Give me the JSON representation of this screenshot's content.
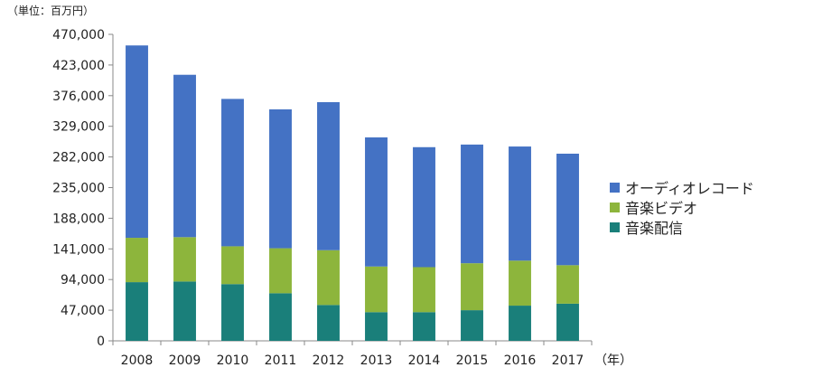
{
  "chart_data": {
    "type": "bar",
    "stacked": true,
    "unit_label": "（単位：百万円）",
    "x_unit_label": "（年）",
    "categories": [
      "2008",
      "2009",
      "2010",
      "2011",
      "2012",
      "2013",
      "2014",
      "2015",
      "2016",
      "2017"
    ],
    "ylim": [
      0,
      470000
    ],
    "yticks": [
      "0",
      "47,000",
      "94,000",
      "141,000",
      "188,000",
      "235,000",
      "282,000",
      "329,000",
      "376,000",
      "423,000",
      "470,000"
    ],
    "ytick_values": [
      0,
      47000,
      94000,
      141000,
      188000,
      235000,
      282000,
      329000,
      376000,
      423000,
      470000
    ],
    "grid": false,
    "legend_position": "right",
    "series": [
      {
        "name": "音楽配信",
        "color": "#1a7f7a",
        "values": [
          90000,
          91000,
          87000,
          73000,
          55000,
          44000,
          44000,
          47000,
          54000,
          57000
        ]
      },
      {
        "name": "音楽ビデオ",
        "color": "#8db53c",
        "values": [
          68000,
          68000,
          58000,
          69000,
          84000,
          70000,
          69000,
          72000,
          69000,
          59000
        ]
      },
      {
        "name": "オーディオレコード",
        "color": "#4472c4",
        "values": [
          295000,
          249000,
          226000,
          213000,
          227000,
          198000,
          184000,
          182000,
          175000,
          171000
        ]
      }
    ]
  }
}
